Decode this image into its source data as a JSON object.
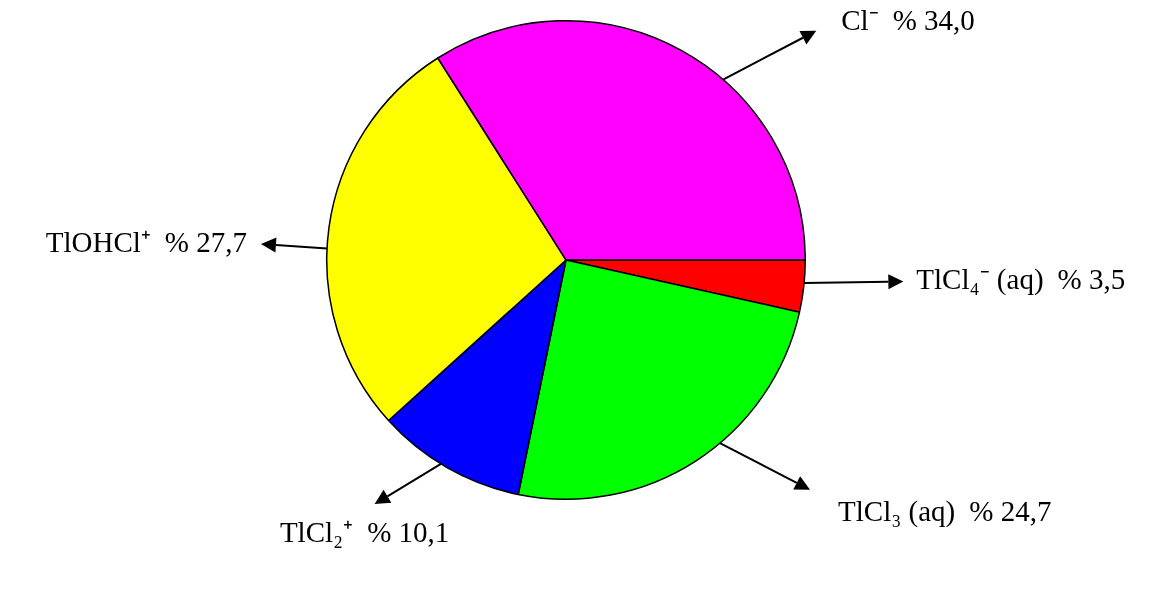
{
  "chart_data": {
    "type": "pie",
    "categories": [
      "TlCl₄⁻ (aq)",
      "TlCl₃ (aq)",
      "TlCl₂⁺",
      "TlOHCl⁺",
      "Cl⁻"
    ],
    "values": [
      3.5,
      24.7,
      10.1,
      27.7,
      34.0
    ],
    "colors": [
      "#ff0000",
      "#00ff00",
      "#0000ff",
      "#ffff00",
      "#ff00ff"
    ],
    "value_labels": [
      "% 3,5",
      "% 24,7",
      "% 10,1",
      "% 27,7",
      "% 34,0"
    ]
  }
}
